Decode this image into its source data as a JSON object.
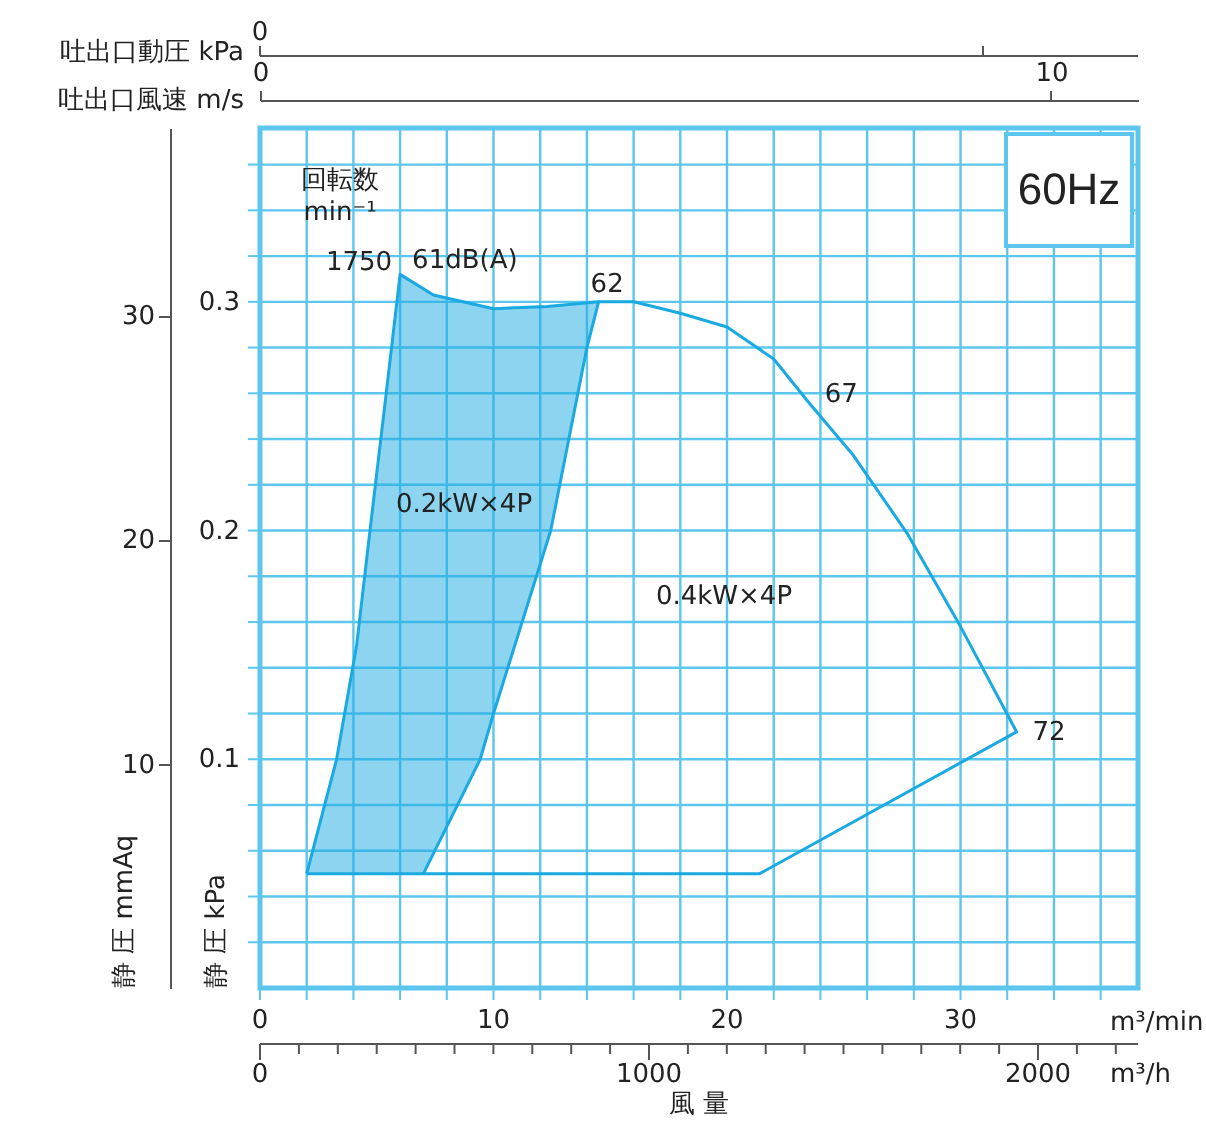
{
  "chart_data": {
    "type": "line",
    "title": "60Hz",
    "xlabel": "m³/min",
    "x2label": "吐出口風速  m/s",
    "ylabel": "静 圧 kPa",
    "y2label": "静 圧 mmAq",
    "xlim": [
      0,
      37.6
    ],
    "xticks": [
      0,
      {
        "value": 2,
        "label": null
      },
      {
        "value": 4,
        "label": null
      },
      {
        "value": 6,
        "label": null
      },
      {
        "value": 8,
        "label": null
      },
      10,
      {
        "value": 12,
        "label": null
      },
      {
        "value": 14,
        "label": null
      },
      {
        "value": 16,
        "label": null
      },
      {
        "value": 18,
        "label": null
      },
      20,
      {
        "value": 22,
        "label": null
      },
      {
        "value": 24,
        "label": null
      },
      {
        "value": 26,
        "label": null
      },
      {
        "value": 28,
        "label": null
      },
      30,
      {
        "value": 32,
        "label": null
      },
      {
        "value": 34,
        "label": null
      },
      {
        "value": 36,
        "label": null
      }
    ],
    "x2lim": [
      0,
      11.1
    ],
    "x2ticks": [
      0,
      10
    ],
    "ylim": [
      0,
      0.376
    ],
    "yticks": [
      {
        "value": 0.02,
        "label": null
      },
      {
        "value": 0.04,
        "label": null
      },
      {
        "value": 0.06,
        "label": null
      },
      {
        "value": 0.08,
        "label": null
      },
      0.1,
      {
        "value": 0.12,
        "label": null
      },
      {
        "value": 0.14,
        "label": null
      },
      {
        "value": 0.16,
        "label": null
      },
      {
        "value": 0.18,
        "label": null
      },
      0.2,
      {
        "value": 0.22,
        "label": null
      },
      {
        "value": 0.24,
        "label": null
      },
      {
        "value": 0.26,
        "label": null
      },
      {
        "value": 0.28,
        "label": null
      },
      0.3,
      {
        "value": 0.32,
        "label": null
      },
      {
        "value": 0.34,
        "label": null
      },
      {
        "value": 0.36,
        "label": null
      }
    ],
    "y2lim": [
      0,
      38.35
    ],
    "y2ticks": [
      10,
      20,
      30
    ],
    "grid": true,
    "marker": "none",
    "line_style": "solid",
    "series": [
      {
        "type": "area",
        "color": "#1aa9e0",
        "x": [
          2.0,
          3.28,
          4.14,
          4.71,
          5.29,
          6.0,
          7.43,
          10.0,
          12.3,
          14.5,
          14.0,
          12.45,
          10.0,
          9.43,
          7.0,
          2.0
        ],
        "values": [
          0.05,
          0.1,
          0.15,
          0.2,
          0.25,
          0.312,
          0.303,
          0.297,
          0.298,
          0.3,
          0.28,
          0.2,
          0.12,
          0.1,
          0.05,
          0.05
        ]
      },
      {
        "color": "#1aa9e0",
        "x": [
          14.5,
          16.0,
          18.0,
          20.0,
          22.0,
          23.5,
          25.4,
          27.7,
          30.0,
          32.4,
          21.4,
          7.0
        ],
        "values": [
          0.3,
          0.3,
          0.295,
          0.289,
          0.275,
          0.256,
          0.233,
          0.199,
          0.158,
          0.112,
          0.05,
          0.05
        ]
      }
    ],
    "annotations": [
      "風  量",
      "回転数\nmin⁻¹",
      "0.2kW×4P",
      "0.4kW×4P",
      "吐出口動圧  kPa",
      "0",
      "m³/h",
      "0",
      "1000",
      "2000",
      {
        "text": "1750",
        "x": 6.0,
        "y": 0.312
      },
      {
        "text": "61dB(A)",
        "x": 6.0,
        "y": 0.312
      },
      {
        "text": "62",
        "x": 14.5,
        "y": 0.3
      },
      {
        "text": "67",
        "x": 23.5,
        "y": 0.256
      },
      {
        "text": "72",
        "x": 32.4,
        "y": 0.112
      }
    ]
  }
}
